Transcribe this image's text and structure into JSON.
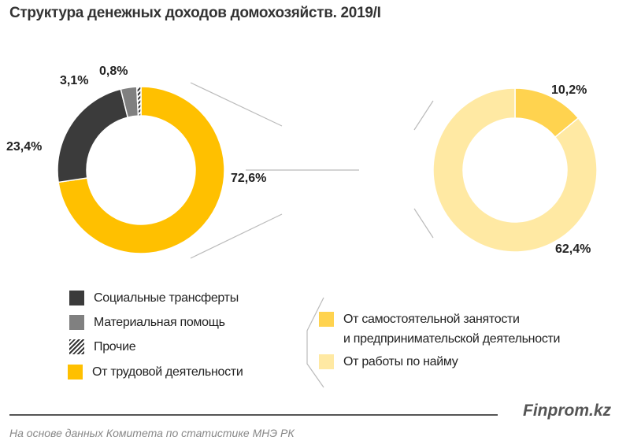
{
  "title": "Структура денежных доходов домохозяйств. 2019/I",
  "chart_data": [
    {
      "type": "pie",
      "donut": true,
      "slices": [
        {
          "name": "От трудовой деятельности",
          "value": 72.6,
          "label": "72,6%",
          "color": "#FFC000"
        },
        {
          "name": "Социальные трансферты",
          "value": 23.4,
          "label": "23,4%",
          "color": "#3B3B3B"
        },
        {
          "name": "Материальная помощь",
          "value": 3.1,
          "label": "3,1%",
          "color": "#808080"
        },
        {
          "name": "Прочие",
          "value": 0.8,
          "label": "0,8%",
          "color": "hatched"
        }
      ]
    },
    {
      "type": "pie",
      "donut": true,
      "breakdown_of": "От трудовой деятельности",
      "slices": [
        {
          "name": "От самостоятельной занятости и предпринимательской деятельности",
          "value": 10.2,
          "label": "10,2%",
          "color": "#FFD34F"
        },
        {
          "name": "От работы по найму",
          "value": 62.4,
          "label": "62,4%",
          "color": "#FFE9A3"
        }
      ]
    }
  ],
  "legend_left": [
    {
      "label": "Социальные трансферты",
      "color": "#3B3B3B"
    },
    {
      "label": "Материальная помощь",
      "color": "#808080"
    },
    {
      "label": "Прочие",
      "color": "hatched"
    },
    {
      "label": "От трудовой деятельности",
      "color": "#FFC000"
    }
  ],
  "legend_right": [
    {
      "label_line1": "От самостоятельной занятости",
      "label_line2": "и предпринимательской деятельности",
      "color": "#FFD34F"
    },
    {
      "label_line1": "От работы по найму",
      "color": "#FFE9A3"
    }
  ],
  "footer": {
    "brand": "Finprom.kz",
    "source": "На основе данных  Комитета по статистике МНЭ РК"
  }
}
